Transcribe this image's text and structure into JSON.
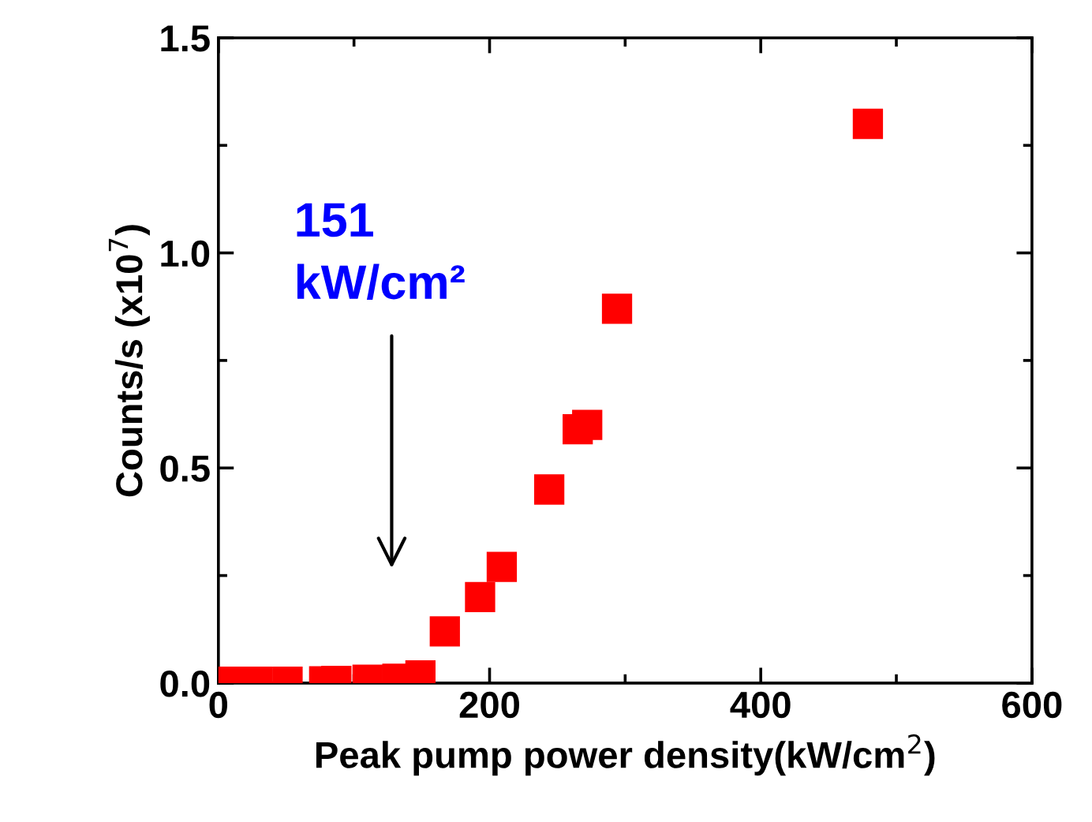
{
  "chart_data": {
    "type": "scatter",
    "xlabel": "Peak pump power density(kW/cm$^{2}$)",
    "ylabel": "Counts/s (x10$^{7}$)",
    "series": [
      {
        "color": "#ff0000",
        "x": [
          10,
          29,
          51,
          78,
          87,
          110,
          132,
          149,
          167,
          193,
          209,
          244,
          265,
          272,
          294,
          479
        ],
        "values": [
          0.003,
          0.003,
          0.003,
          0.004,
          0.005,
          0.008,
          0.01,
          0.018,
          0.12,
          0.2,
          0.27,
          0.45,
          0.59,
          0.6,
          0.87,
          1.3
        ]
      }
    ],
    "marker": "square",
    "xlim": [
      0,
      600
    ],
    "ylim": [
      0,
      1.5
    ],
    "xticks": [
      0,
      200,
      400,
      600
    ],
    "yticks": [
      {
        "value": 0,
        "label": "0.0"
      },
      {
        "value": 0.5,
        "label": "0.5"
      },
      {
        "value": 1.0,
        "label": "1.0"
      },
      {
        "value": 1.5,
        "label": "1.5"
      }
    ],
    "annotations": [
      "151\nkW/cm²"
    ],
    "grid": false,
    "legend": false
  }
}
